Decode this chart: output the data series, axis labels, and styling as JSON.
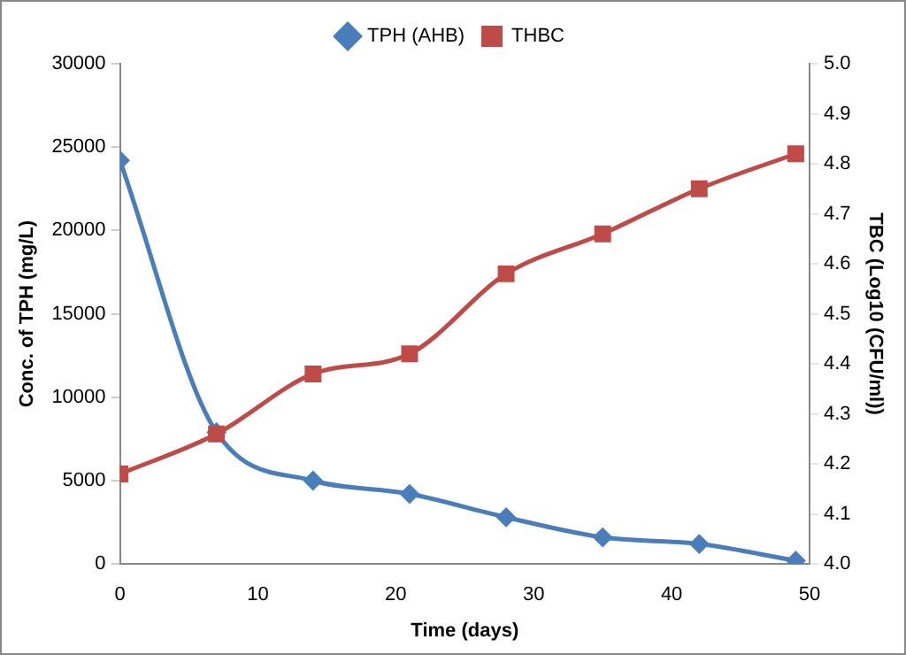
{
  "chart_data": {
    "type": "line",
    "xlabel": "Time (days)",
    "ylabel": "Conc. of TPH (mg/L)",
    "y2label": "TBC (Log10 (CFU/ml))",
    "x": [
      0,
      7,
      14,
      21,
      28,
      35,
      42,
      49
    ],
    "series": [
      {
        "name": "TPH (AHB)",
        "color": "#4a7ebb",
        "marker": "diamond",
        "values": [
          24200,
          7900,
          5000,
          4200,
          2800,
          1600,
          1200,
          200
        ]
      },
      {
        "name": "THBC",
        "color": "#be4b48",
        "marker": "square",
        "axis": "y2",
        "values": [
          4.18,
          4.26,
          4.38,
          4.42,
          4.58,
          4.66,
          4.75,
          4.82
        ]
      }
    ],
    "xlim": [
      0,
      50
    ],
    "xticks": [
      0,
      10,
      20,
      30,
      40,
      50
    ],
    "ylim": [
      0,
      30000
    ],
    "yticks": [
      0,
      5000,
      10000,
      15000,
      20000,
      25000,
      30000
    ],
    "y2lim": [
      4.0,
      5.0
    ],
    "y2ticks": [
      {
        "value": 4.0,
        "label": "4.0"
      },
      4.1,
      4.2,
      4.3,
      4.4,
      4.5,
      4.6,
      4.7,
      4.8,
      4.9,
      {
        "value": 5.0,
        "label": "5.0"
      }
    ],
    "grid": false,
    "legend": "top"
  }
}
